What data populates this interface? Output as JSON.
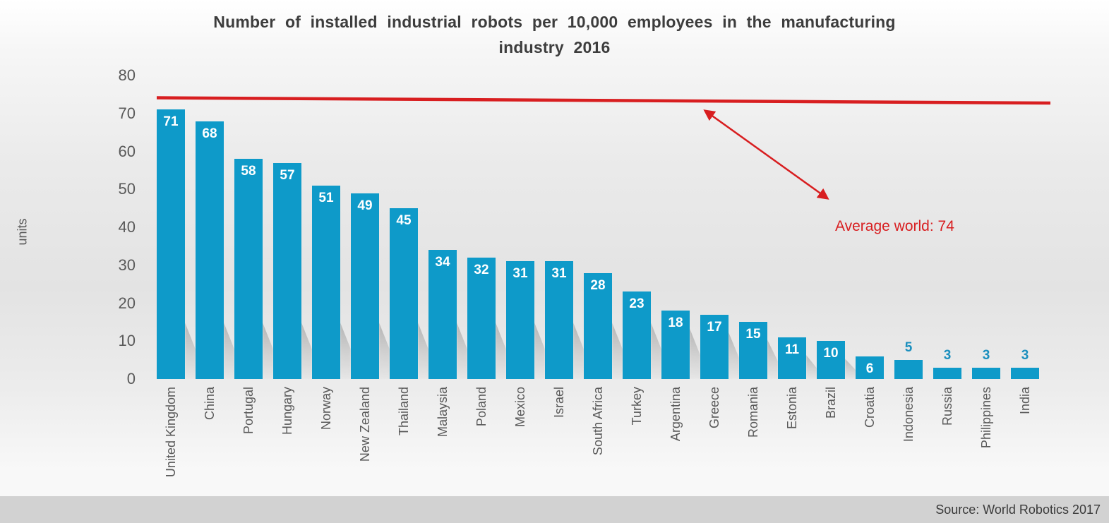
{
  "chart_data": {
    "type": "bar",
    "title": "Number of installed industrial robots per 10,000 employees in the manufacturing\nindustry 2016",
    "ylabel": "units",
    "ylim": [
      0,
      80
    ],
    "yticks": [
      0,
      10,
      20,
      30,
      40,
      50,
      60,
      70,
      80
    ],
    "grid": false,
    "legend": "none",
    "categories": [
      "United Kingdom",
      "China",
      "Portugal",
      "Hungary",
      "Norway",
      "New Zealand",
      "Thailand",
      "Malaysia",
      "Poland",
      "Mexico",
      "Israel",
      "South Africa",
      "Turkey",
      "Argentina",
      "Greece",
      "Romania",
      "Estonia",
      "Brazil",
      "Croatia",
      "Indonesia",
      "Russia",
      "Philippines",
      "India"
    ],
    "values": [
      71,
      68,
      58,
      57,
      51,
      49,
      45,
      34,
      32,
      31,
      31,
      28,
      23,
      18,
      17,
      15,
      11,
      10,
      6,
      5,
      3,
      3,
      3
    ],
    "bar_color": "#0e9ac9",
    "annotation": {
      "label": "Average world: 74",
      "value": 74,
      "color": "#d81e20"
    },
    "source": "Source: World Robotics 2017"
  }
}
